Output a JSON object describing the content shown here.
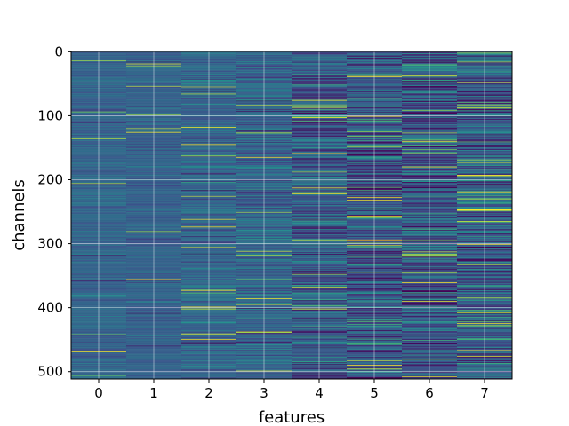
{
  "chart_data": {
    "type": "heatmap",
    "title": "",
    "xlabel": "features",
    "ylabel": "channels",
    "x_categories": [
      "0",
      "1",
      "2",
      "3",
      "4",
      "5",
      "6",
      "7"
    ],
    "y_range": [
      0,
      511
    ],
    "n_rows": 512,
    "y_ticks": [
      0,
      100,
      200,
      300,
      400,
      500
    ],
    "y_inverted": true,
    "colormap": "viridis",
    "grid": true,
    "feature_column_stats": [
      {
        "feature": "0",
        "mean": 0.32,
        "spread": 0.05
      },
      {
        "feature": "1",
        "mean": 0.31,
        "spread": 0.05
      },
      {
        "feature": "2",
        "mean": 0.33,
        "spread": 0.07
      },
      {
        "feature": "3",
        "mean": 0.32,
        "spread": 0.09
      },
      {
        "feature": "4",
        "mean": 0.28,
        "spread": 0.13
      },
      {
        "feature": "5",
        "mean": 0.27,
        "spread": 0.15
      },
      {
        "feature": "6",
        "mean": 0.26,
        "spread": 0.16
      },
      {
        "feature": "7",
        "mean": 0.3,
        "spread": 0.15
      }
    ]
  },
  "colors": {
    "background": "#ffffff",
    "axis": "#000000",
    "grid": "#ffffff"
  }
}
